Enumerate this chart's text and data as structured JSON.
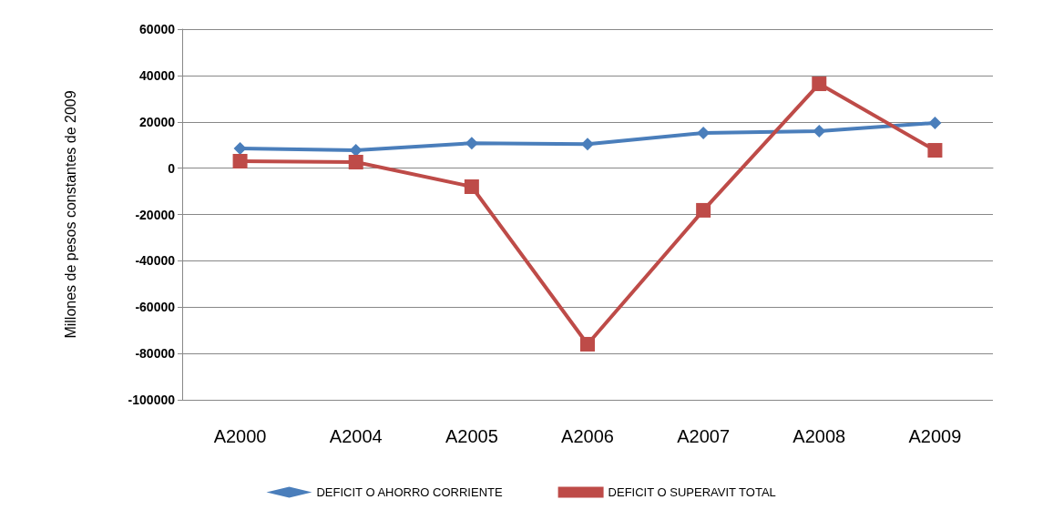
{
  "chart_data": {
    "type": "line",
    "ylabel": "Millones de pesos constantes de 2009",
    "categories": [
      "A2000",
      "A2004",
      "A2005",
      "A2006",
      "A2007",
      "A2008",
      "A2009"
    ],
    "series": [
      {
        "name": "DEFICIT O AHORRO CORRIENTE",
        "color": "#4a7ebb",
        "marker": "diamond",
        "values": [
          8500,
          7700,
          10800,
          10400,
          15200,
          16000,
          19500
        ]
      },
      {
        "name": "DEFICIT O SUPERAVIT TOTAL",
        "color": "#be4b48",
        "marker": "square",
        "values": [
          3000,
          2600,
          -8000,
          -76000,
          -18200,
          36400,
          7700
        ]
      }
    ],
    "ylim": [
      -100000,
      60000
    ],
    "yticks": [
      -100000,
      -80000,
      -60000,
      -40000,
      -20000,
      0,
      20000,
      40000,
      60000
    ],
    "grid": "y",
    "legend": "bottom",
    "line_style": "solid"
  }
}
